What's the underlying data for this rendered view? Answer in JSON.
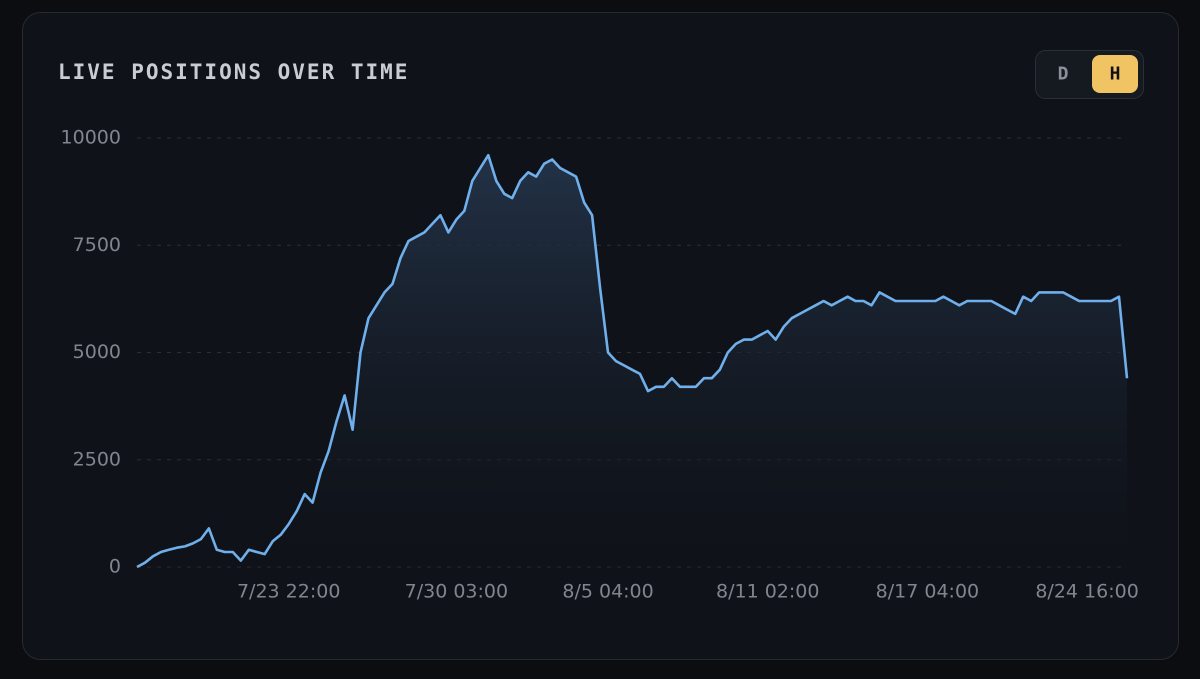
{
  "chart_data": {
    "type": "line",
    "title": "LIVE POSITIONS OVER TIME",
    "toggle": {
      "options": [
        "D",
        "H"
      ],
      "active_index": 1
    },
    "categories": [
      null,
      null,
      null,
      null,
      null,
      null,
      null,
      null,
      null,
      null,
      null,
      null,
      null,
      null,
      null,
      null,
      null,
      null,
      null,
      "7/23 22:00",
      null,
      null,
      null,
      null,
      null,
      null,
      null,
      null,
      null,
      null,
      null,
      null,
      null,
      null,
      null,
      null,
      null,
      null,
      null,
      null,
      "7/30 03:00",
      null,
      null,
      null,
      null,
      null,
      null,
      null,
      null,
      null,
      null,
      null,
      null,
      null,
      null,
      null,
      null,
      null,
      null,
      "8/5 04:00",
      null,
      null,
      null,
      null,
      null,
      null,
      null,
      null,
      null,
      null,
      null,
      null,
      null,
      null,
      null,
      null,
      null,
      null,
      null,
      "8/11 02:00",
      null,
      null,
      null,
      null,
      null,
      null,
      null,
      null,
      null,
      null,
      null,
      null,
      null,
      null,
      null,
      null,
      null,
      null,
      null,
      "8/17 04:00",
      null,
      null,
      null,
      null,
      null,
      null,
      null,
      null,
      null,
      null,
      null,
      null,
      null,
      null,
      null,
      null,
      null,
      null,
      null,
      "8/24 16:00",
      null,
      null,
      null,
      null,
      null
    ],
    "values": [
      0,
      100,
      250,
      350,
      400,
      450,
      480,
      550,
      650,
      900,
      400,
      350,
      350,
      150,
      400,
      350,
      300,
      600,
      750,
      1000,
      1300,
      1700,
      1500,
      2200,
      2700,
      3400,
      4000,
      3200,
      5000,
      5800,
      6100,
      6400,
      6600,
      7200,
      7600,
      7700,
      7800,
      8000,
      8200,
      7800,
      8100,
      8300,
      9000,
      9300,
      9600,
      9000,
      8700,
      8600,
      9000,
      9200,
      9100,
      9400,
      9500,
      9300,
      9200,
      9100,
      8500,
      8200,
      6500,
      5000,
      4800,
      4700,
      4600,
      4500,
      4100,
      4200,
      4200,
      4400,
      4200,
      4200,
      4200,
      4400,
      4400,
      4600,
      5000,
      5200,
      5300,
      5300,
      5400,
      5500,
      5300,
      5600,
      5800,
      5900,
      6000,
      6100,
      6200,
      6100,
      6200,
      6300,
      6200,
      6200,
      6100,
      6400,
      6300,
      6200,
      6200,
      6200,
      6200,
      6200,
      6200,
      6300,
      6200,
      6100,
      6200,
      6200,
      6200,
      6200,
      6100,
      6000,
      5900,
      6300,
      6200,
      6400,
      6400,
      6400,
      6400,
      6300,
      6200,
      6200,
      6200,
      6200,
      6200,
      6300,
      4400
    ],
    "color": "#6fb0ec",
    "ylim": [
      0,
      10000
    ],
    "yticks": [
      0,
      2500,
      5000,
      7500,
      10000
    ],
    "grid": true
  }
}
